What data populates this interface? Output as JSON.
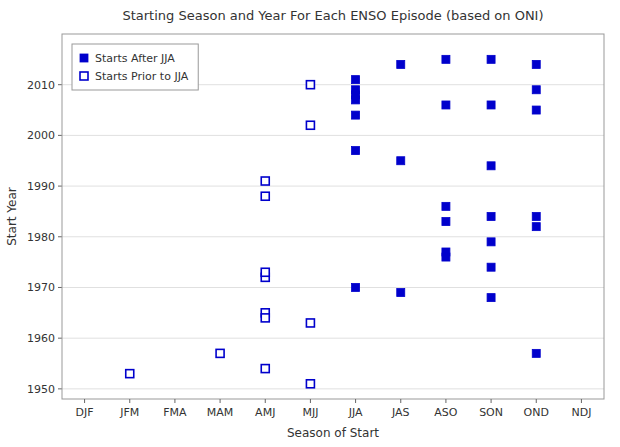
{
  "chart_data": {
    "type": "scatter",
    "title": "Starting Season and Year For Each ENSO Episode (based on ONI)",
    "x_label": "Season of Start",
    "y_label": "Start Year",
    "categories": [
      "DJF",
      "JFM",
      "FMA",
      "MAM",
      "AMJ",
      "MJJ",
      "JJA",
      "JAS",
      "ASO",
      "SON",
      "OND",
      "NDJ"
    ],
    "series": [
      {
        "name": "Starts After JJA",
        "color": "#0000CC",
        "marker": "square",
        "x": [
          "JJA",
          "JJA",
          "JJA",
          "JJA",
          "JJA",
          "JJA",
          "JJA",
          "JAS",
          "JAS",
          "JAS",
          "ASO",
          "ASO",
          "ASO",
          "ASO",
          "ASO",
          "ASO",
          "SON",
          "SON",
          "SON",
          "SON",
          "SON",
          "SON",
          "SON",
          "OND",
          "OND",
          "OND",
          "OND",
          "OND",
          "OND"
        ],
        "values": [
          2011,
          2009,
          2008,
          2007,
          2004,
          1997,
          1970,
          2014,
          1995,
          1969,
          2015,
          2006,
          1986,
          1983,
          1977,
          1976,
          2015,
          2006,
          1994,
          1984,
          1979,
          1974,
          1968,
          2014,
          2009,
          2005,
          1984,
          1982,
          1957
        ]
      },
      {
        "name": "Starts Prior to JJA",
        "color": "#0000CC",
        "marker": "square-open",
        "x": [
          "JFM",
          "MAM",
          "AMJ",
          "AMJ",
          "AMJ",
          "AMJ",
          "AMJ",
          "AMJ",
          "AMJ",
          "MJJ",
          "MJJ",
          "MJJ",
          "MJJ"
        ],
        "values": [
          1953,
          1957,
          1972,
          1973,
          1965,
          1964,
          1954,
          1991,
          1988,
          2010,
          2002,
          1963,
          1951
        ]
      }
    ],
    "ylim": [
      1948,
      2020
    ],
    "yticks": [
      1950,
      1960,
      1970,
      1980,
      1990,
      2000,
      2010
    ],
    "grid": true,
    "legend": "upper left"
  }
}
